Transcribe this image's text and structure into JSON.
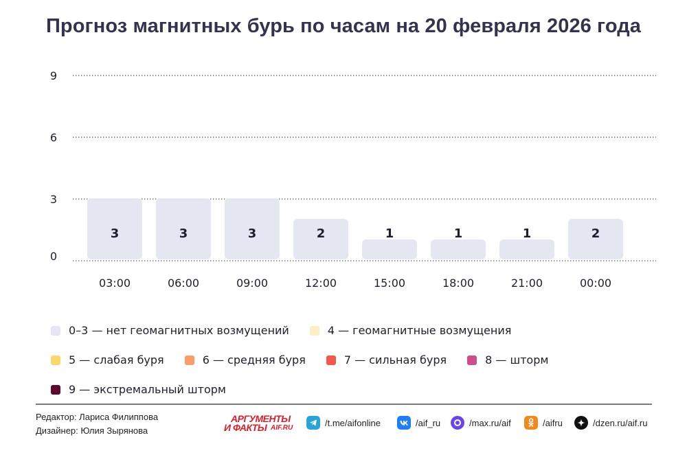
{
  "title": "Прогноз магнитных бурь по часам на 20 февраля 2026 года",
  "chart_data": {
    "type": "bar",
    "categories": [
      "03:00",
      "06:00",
      "09:00",
      "12:00",
      "15:00",
      "18:00",
      "21:00",
      "00:00"
    ],
    "values": [
      3,
      3,
      3,
      2,
      1,
      1,
      1,
      2
    ],
    "ylim": [
      0,
      9
    ],
    "yticks": [
      0,
      3,
      6,
      9
    ],
    "grid": true,
    "bar_color": "#e4e7f1",
    "legend_placement": "bottom"
  },
  "legend": [
    {
      "label": "0–3 — нет геомагнитных возмущений",
      "color": "#e4e7f1"
    },
    {
      "label": "4 — геомагнитные возмущения",
      "color": "#fdeec5"
    },
    {
      "label": "5 — слабая буря",
      "color": "#fbd86e"
    },
    {
      "label": "6 — средняя буря",
      "color": "#f99d6b"
    },
    {
      "label": "7 — сильная буря",
      "color": "#f2594c"
    },
    {
      "label": "8 — шторм",
      "color": "#c9508a"
    },
    {
      "label": "9 — экстремальный шторм",
      "color": "#5c0a2e"
    }
  ],
  "credits": {
    "editor": "Редактор: Лариса Филиппова",
    "designer": "Дизайнер: Юлия Зырянова"
  },
  "logo": {
    "line1": "АРГУМЕНТЫ",
    "line2": "И ФАКТЫ",
    "line3": "AIF.RU"
  },
  "social": [
    {
      "icon": "telegram-icon",
      "label": "/t.me/aifonline",
      "color": "#2aa3d9"
    },
    {
      "icon": "vk-icon",
      "label": "/aif_ru",
      "color": "#1f7ff2"
    },
    {
      "icon": "max-icon",
      "label": "/max.ru/aif",
      "color": "#6b45e8"
    },
    {
      "icon": "odnoklassniki-icon",
      "label": "/aifru",
      "color": "#f08a1c"
    },
    {
      "icon": "dzen-icon",
      "label": "/dzen.ru/aif.ru",
      "color": "#111111"
    }
  ]
}
